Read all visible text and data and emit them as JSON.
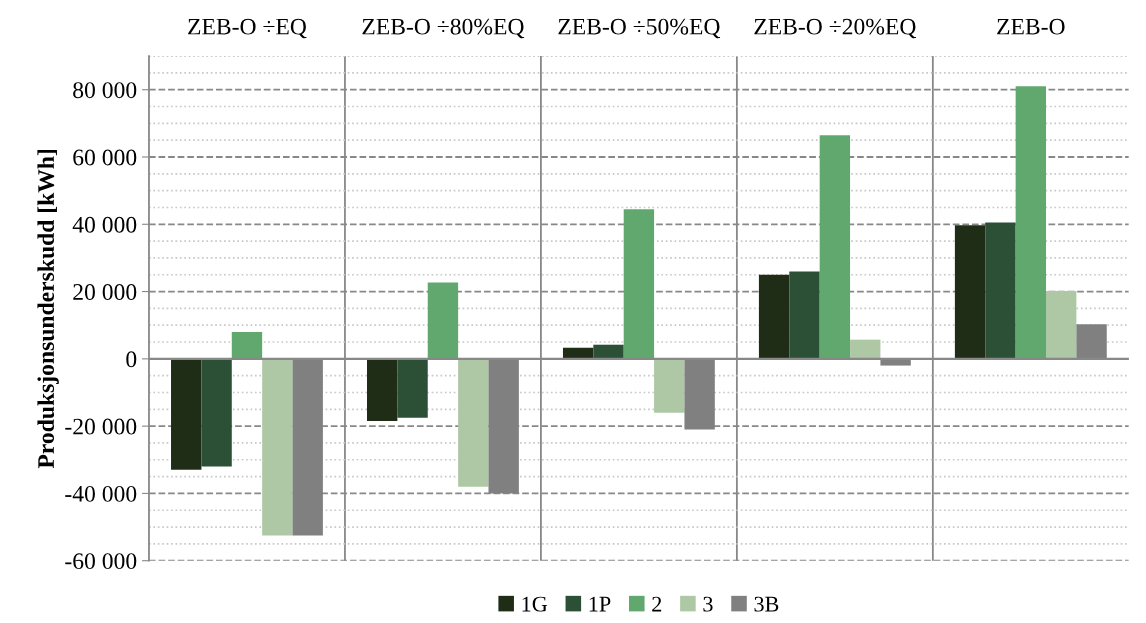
{
  "chart_data": {
    "type": "bar",
    "ylabel": "Produksjonsunderskudd [kWh]",
    "categories": [
      "ZEB-O ÷EQ",
      "ZEB-O ÷80%EQ",
      "ZEB-O ÷50%EQ",
      "ZEB-O ÷20%EQ",
      "ZEB-O"
    ],
    "series": [
      {
        "name": "1G",
        "color": "#1f2d16",
        "values": [
          -33000,
          -18500,
          3300,
          25000,
          39700
        ]
      },
      {
        "name": "1P",
        "color": "#2b5036",
        "values": [
          -32000,
          -17500,
          4200,
          26000,
          40500
        ]
      },
      {
        "name": "2",
        "color": "#60a86e",
        "values": [
          8000,
          22700,
          44500,
          66500,
          81000
        ]
      },
      {
        "name": "3",
        "color": "#aec8a6",
        "values": [
          -52500,
          -38000,
          -16000,
          5700,
          20200
        ]
      },
      {
        "name": "3B",
        "color": "#808080",
        "values": [
          -52500,
          -40000,
          -21000,
          -2000,
          10300
        ]
      }
    ],
    "ylim": [
      -60000,
      90000
    ],
    "yticks": [
      {
        "value": -60000,
        "label": "-60 000"
      },
      {
        "value": -40000,
        "label": "-40 000"
      },
      {
        "value": -20000,
        "label": "-20 000"
      },
      0,
      {
        "value": 20000,
        "label": "20 000"
      },
      {
        "value": 40000,
        "label": "40 000"
      },
      {
        "value": 60000,
        "label": "60 000"
      },
      {
        "value": 80000,
        "label": "80 000"
      }
    ],
    "grid": true,
    "legend": "bottom"
  }
}
